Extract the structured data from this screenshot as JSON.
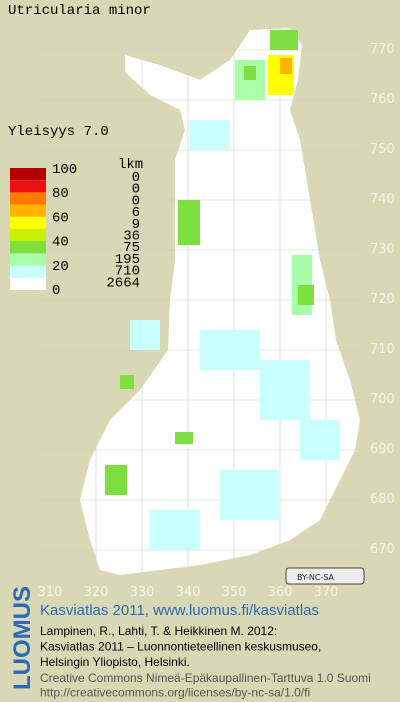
{
  "title": "Utricularia minor",
  "frequency": "Yleisyys  7.0",
  "legend": {
    "scale": [
      "100",
      "80",
      "60",
      "40",
      "20",
      "0"
    ],
    "count_header": "lkm",
    "counts": [
      0,
      0,
      0,
      6,
      9,
      36,
      75,
      195,
      710,
      2664
    ],
    "colors": [
      "#b40000",
      "#e81010",
      "#ff7a00",
      "#ffb400",
      "#ffff00",
      "#c8f000",
      "#7ee040",
      "#a8ffa8",
      "#c8ffff",
      "#ffffff"
    ]
  },
  "axes": {
    "north": [
      770,
      760,
      750,
      740,
      730,
      720,
      710,
      700,
      690,
      680,
      670
    ],
    "east": [
      310,
      320,
      330,
      340,
      350,
      360,
      370
    ]
  },
  "license_badge": "BY-NC-SA",
  "footer": {
    "brand": "LUOMUS",
    "site": "Kasviatlas 2011, www.luomus.fi/kasviatlas",
    "lines": [
      "Lampinen, R., Lahti, T. & Heikkinen M. 2012:",
      "Kasviatlas 2011 – Luonnontieteellinen keskusmuseo,",
      "Helsingin Yliopisto, Helsinki."
    ],
    "license_lines": [
      "Creative Commons Nimeä-Epäkaupallinen-Tarttuva 1.0 Suomi",
      "http://creativecommons.org/licenses/by-nc-sa/1.0/fi"
    ]
  }
}
